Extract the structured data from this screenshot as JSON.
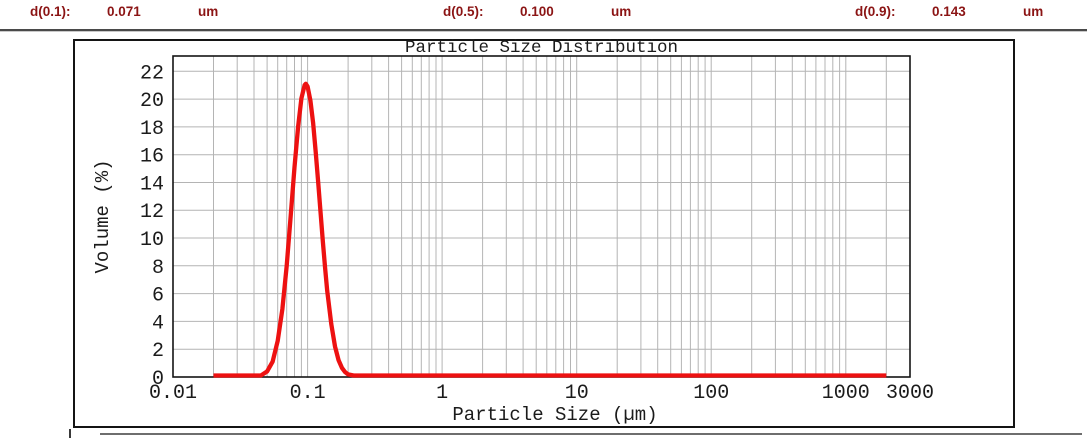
{
  "header": {
    "text_color": "#8B1414",
    "items": [
      {
        "label": "d(0.1):",
        "value": "0.071",
        "unit": "um"
      },
      {
        "label": "d(0.5):",
        "value": "0.100",
        "unit": "um"
      },
      {
        "label": "d(0.9):",
        "value": "0.143",
        "unit": "um"
      }
    ]
  },
  "chart_data": {
    "type": "line",
    "title": "Particle Size Distribution",
    "xlabel": "Particle Size (µm)",
    "ylabel": "Volume (%)",
    "x_scale": "log",
    "xlim": [
      0.01,
      3000
    ],
    "ylim": [
      0,
      23.1
    ],
    "x_ticks": [
      0.01,
      0.1,
      1,
      10,
      100,
      1000,
      3000
    ],
    "x_tick_labels": [
      "0.01",
      "0.1",
      "1",
      "10",
      "100",
      "1000",
      "3000"
    ],
    "y_ticks": [
      0,
      2,
      4,
      6,
      8,
      10,
      12,
      14,
      16,
      18,
      20,
      22
    ],
    "grid": true,
    "legend": false,
    "line_color": "#ED1111",
    "grid_color": "#B4B4B4",
    "d_values": {
      "d(0.1)_um": 0.071,
      "d(0.5)_um": 0.1,
      "d(0.9)_um": 0.143
    },
    "peak": {
      "x_um": 0.097,
      "y_percent": 21.1
    },
    "series": [
      {
        "name": "volume-distribution",
        "points": [
          [
            0.02,
            0
          ],
          [
            0.03,
            0
          ],
          [
            0.04,
            0
          ],
          [
            0.045,
            0.1
          ],
          [
            0.05,
            0.4
          ],
          [
            0.055,
            1.1
          ],
          [
            0.06,
            2.6
          ],
          [
            0.065,
            4.9
          ],
          [
            0.07,
            8.0
          ],
          [
            0.075,
            11.6
          ],
          [
            0.08,
            15.1
          ],
          [
            0.085,
            18.0
          ],
          [
            0.09,
            20.05
          ],
          [
            0.095,
            21.0
          ],
          [
            0.097,
            21.1
          ],
          [
            0.1,
            20.9
          ],
          [
            0.105,
            19.9
          ],
          [
            0.11,
            18.3
          ],
          [
            0.115,
            16.2
          ],
          [
            0.12,
            14.0
          ],
          [
            0.125,
            11.8
          ],
          [
            0.13,
            9.7
          ],
          [
            0.135,
            7.85
          ],
          [
            0.14,
            6.2
          ],
          [
            0.15,
            3.8
          ],
          [
            0.16,
            2.2
          ],
          [
            0.17,
            1.2
          ],
          [
            0.18,
            0.66
          ],
          [
            0.19,
            0.35
          ],
          [
            0.2,
            0.19
          ],
          [
            0.22,
            0.05
          ],
          [
            0.25,
            0
          ],
          [
            0.3,
            0
          ],
          [
            0.5,
            0
          ],
          [
            1,
            0
          ],
          [
            2,
            0
          ],
          [
            5,
            0
          ],
          [
            10,
            0
          ],
          [
            30,
            0
          ],
          [
            100,
            0
          ],
          [
            300,
            0
          ],
          [
            1000,
            0
          ],
          [
            2000,
            0
          ]
        ]
      }
    ]
  }
}
